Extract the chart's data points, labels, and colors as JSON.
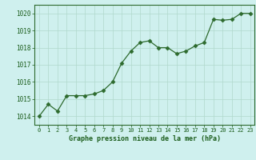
{
  "x": [
    0,
    1,
    2,
    3,
    4,
    5,
    6,
    7,
    8,
    9,
    10,
    11,
    12,
    13,
    14,
    15,
    16,
    17,
    18,
    19,
    20,
    21,
    22,
    23
  ],
  "y": [
    1014.0,
    1014.7,
    1014.3,
    1015.2,
    1015.2,
    1015.2,
    1015.3,
    1015.5,
    1016.0,
    1017.1,
    1017.8,
    1018.3,
    1018.4,
    1018.0,
    1018.0,
    1017.65,
    1017.8,
    1018.1,
    1018.3,
    1019.65,
    1019.6,
    1019.65,
    1020.0,
    1020.0
  ],
  "line_color": "#2d6a2d",
  "marker_color": "#2d6a2d",
  "bg_color": "#cff0ee",
  "grid_color": "#b0d8cc",
  "xlabel": "Graphe pression niveau de la mer (hPa)",
  "xlabel_color": "#1a5c1a",
  "tick_color": "#1a5c1a",
  "spine_color": "#2d6a2d",
  "ylim": [
    1013.5,
    1020.5
  ],
  "yticks": [
    1014,
    1015,
    1016,
    1017,
    1018,
    1019,
    1020
  ],
  "xticks": [
    0,
    1,
    2,
    3,
    4,
    5,
    6,
    7,
    8,
    9,
    10,
    11,
    12,
    13,
    14,
    15,
    16,
    17,
    18,
    19,
    20,
    21,
    22,
    23
  ]
}
